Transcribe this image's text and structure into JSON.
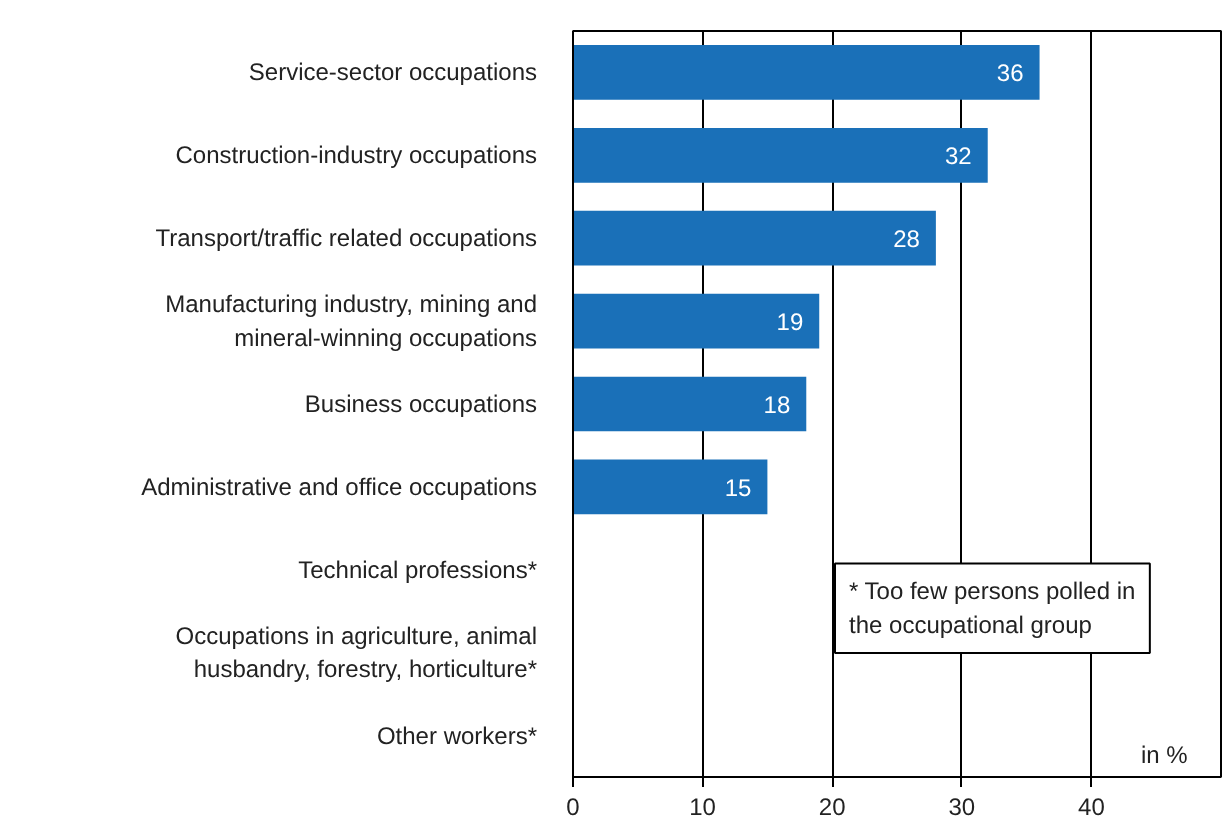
{
  "chart_data": {
    "type": "bar",
    "orientation": "horizontal",
    "categories": [
      "Service-sector occupations",
      "Construction-industry occupations",
      "Transport/traffic related occupations",
      "Manufacturing industry, mining and mineral-winning occupations",
      "Business occupations",
      "Administrative and office occupations",
      "Technical professions*",
      "Occupations in agriculture, animal husbandry, forestry, horticulture*",
      "Other workers*"
    ],
    "values": [
      36,
      32,
      28,
      19,
      18,
      15,
      null,
      null,
      null
    ],
    "color": "#1a70b8",
    "xlim": [
      0,
      50
    ],
    "xticks": [
      0,
      10,
      20,
      30,
      40
    ],
    "xlabel": "in %",
    "grid": "x",
    "data_labels": true,
    "annotations": [
      "* Too few persons polled in the occupational group"
    ]
  }
}
